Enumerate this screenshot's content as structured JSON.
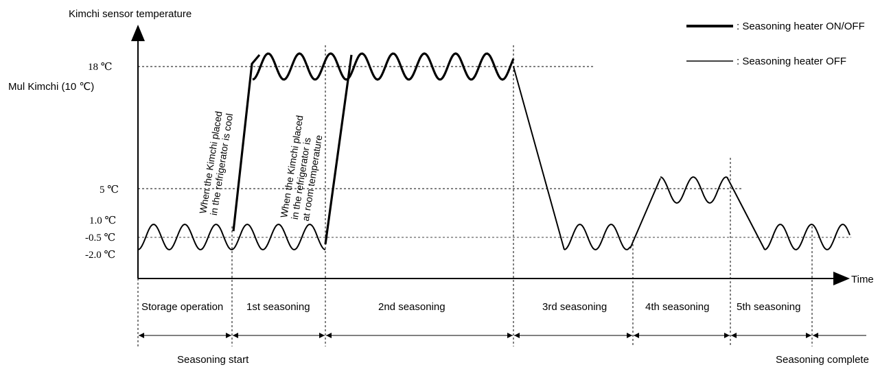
{
  "axes": {
    "y_label": "Kimchi sensor temperature",
    "x_label": "Time"
  },
  "y_levels": [
    {
      "label": "18 ℃",
      "value": "18"
    },
    {
      "label": "Mul Kimchi (10 ℃)",
      "value": "10"
    },
    {
      "label": "5 ℃",
      "value": "5"
    },
    {
      "label": "1.0 ℃",
      "value": "1.0"
    },
    {
      "label": "-0.5 ℃",
      "value": "-0.5"
    },
    {
      "label": "-2.0 ℃",
      "value": "-2.0"
    }
  ],
  "legend": [
    {
      "label": ": Seasoning heater ON/OFF",
      "style": "thick"
    },
    {
      "label": ": Seasoning heater OFF",
      "style": "thin"
    }
  ],
  "annotations": {
    "cool_line1": "When the Kimchi placed",
    "cool_line2": "in the refrigerator is cool",
    "room_line1": "When the Kimchi placed",
    "room_line2": "in the refrigerator is",
    "room_line3": "at room temperature"
  },
  "phases": [
    {
      "label": "Storage operation"
    },
    {
      "label": "1st seasoning"
    },
    {
      "label": "2nd seasoning"
    },
    {
      "label": "3rd seasoning"
    },
    {
      "label": "4th seasoning"
    },
    {
      "label": "5th seasoning"
    }
  ],
  "events": {
    "start": "Seasoning start",
    "complete": "Seasoning complete"
  },
  "colors": {
    "line": "#000000",
    "background": "#ffffff"
  }
}
